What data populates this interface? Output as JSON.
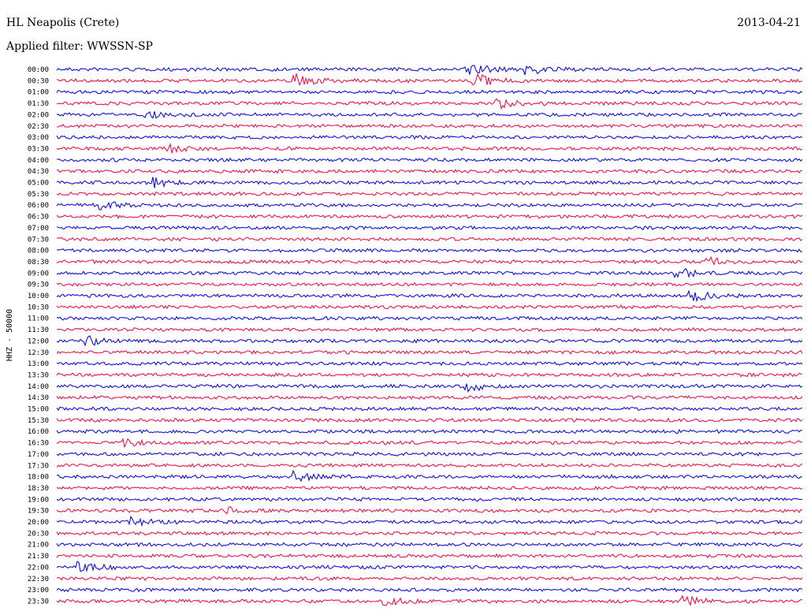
{
  "header": {
    "station": "HL Neapolis (Crete)",
    "date": "2013-04-21",
    "filter": "Applied filter: WWSSN-SP"
  },
  "chart_data": {
    "type": "line",
    "title": "HL Neapolis (Crete)",
    "ylabel": "HHZ - 50000",
    "row_labels": [
      "00:00",
      "00:30",
      "01:00",
      "01:30",
      "02:00",
      "02:30",
      "03:00",
      "03:30",
      "04:00",
      "04:30",
      "05:00",
      "05:30",
      "06:00",
      "06:30",
      "07:00",
      "07:30",
      "08:00",
      "08:30",
      "09:00",
      "09:30",
      "10:00",
      "10:30",
      "11:00",
      "11:30",
      "12:00",
      "12:30",
      "13:00",
      "13:30",
      "14:00",
      "14:30",
      "15:00",
      "15:30",
      "16:00",
      "16:30",
      "17:00",
      "17:30",
      "18:00",
      "18:30",
      "19:00",
      "19:30",
      "20:00",
      "20:30",
      "21:00",
      "21:30",
      "22:00",
      "22:30",
      "23:00",
      "23:30"
    ],
    "series_colors": [
      "#1010e0",
      "#f0144a"
    ],
    "events": [
      {
        "row": 0,
        "x": 0.55,
        "amp": 10
      },
      {
        "row": 0,
        "x": 0.63,
        "amp": 8
      },
      {
        "row": 1,
        "x": 0.32,
        "amp": 9
      },
      {
        "row": 1,
        "x": 0.56,
        "amp": 12
      },
      {
        "row": 3,
        "x": 0.59,
        "amp": 6
      },
      {
        "row": 4,
        "x": 0.12,
        "amp": 5
      },
      {
        "row": 7,
        "x": 0.15,
        "amp": 5
      },
      {
        "row": 10,
        "x": 0.13,
        "amp": 7
      },
      {
        "row": 12,
        "x": 0.06,
        "amp": 5
      },
      {
        "row": 17,
        "x": 0.87,
        "amp": 6
      },
      {
        "row": 18,
        "x": 0.83,
        "amp": 8
      },
      {
        "row": 20,
        "x": 0.85,
        "amp": 10
      },
      {
        "row": 24,
        "x": 0.04,
        "amp": 6
      },
      {
        "row": 28,
        "x": 0.55,
        "amp": 7
      },
      {
        "row": 33,
        "x": 0.09,
        "amp": 5
      },
      {
        "row": 36,
        "x": 0.32,
        "amp": 6
      },
      {
        "row": 39,
        "x": 0.23,
        "amp": 4
      },
      {
        "row": 40,
        "x": 0.1,
        "amp": 5
      },
      {
        "row": 44,
        "x": 0.03,
        "amp": 7
      },
      {
        "row": 47,
        "x": 0.44,
        "amp": 6
      },
      {
        "row": 47,
        "x": 0.84,
        "amp": 6
      }
    ]
  }
}
